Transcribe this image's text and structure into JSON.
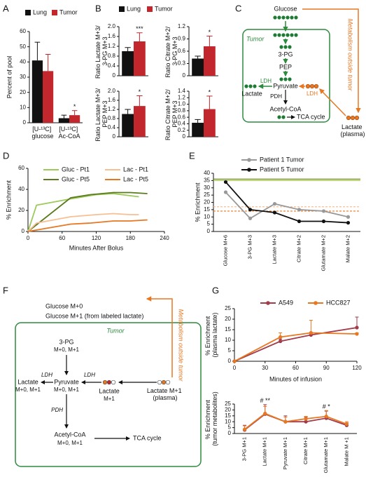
{
  "panel_labels": [
    "A",
    "B",
    "C",
    "D",
    "E",
    "F",
    "G"
  ],
  "chart_data": [
    {
      "type": "bar",
      "ylabel": "Percent of pool",
      "categories": [
        "[U-¹³C] glucose",
        "[U-¹³C] Ac-CoA"
      ],
      "series": [
        {
          "name": "Lung",
          "color": "#111111",
          "values": [
            41,
            3
          ],
          "errors": [
            12,
            2
          ]
        },
        {
          "name": "Tumor",
          "color": "#c1272d",
          "values": [
            34,
            5
          ],
          "errors": [
            11,
            3
          ],
          "annotations": [
            null,
            "*"
          ]
        }
      ],
      "ylim": [
        0,
        60
      ],
      "yticks": [
        0,
        10,
        20,
        30,
        40,
        50,
        60
      ]
    },
    {
      "type": "bar",
      "ylabel": "Ratio Lactate M+3/ 3-PG M+3",
      "series": [
        {
          "name": "Lung",
          "color": "#111111",
          "values": [
            1.0
          ],
          "errors": [
            0.15
          ]
        },
        {
          "name": "Tumor",
          "color": "#c1272d",
          "values": [
            1.4
          ],
          "errors": [
            0.35
          ],
          "annotations": [
            "***"
          ]
        }
      ],
      "ylim": [
        0,
        2
      ],
      "yticks": [
        0,
        0.4,
        0.8,
        1.2,
        1.6,
        {
          "value": 2,
          "label": "2.0"
        }
      ]
    },
    {
      "type": "bar",
      "ylabel": "Ratio Citrate M+2/ 3-PG M+3",
      "series": [
        {
          "color": "#111111",
          "values": [
            0.42
          ],
          "errors": [
            0.06
          ]
        },
        {
          "color": "#c1272d",
          "values": [
            0.72
          ],
          "errors": [
            0.25
          ],
          "annotations": [
            "*"
          ]
        }
      ],
      "ylim": [
        0,
        1.2
      ],
      "yticks": [
        0,
        0.3,
        0.6,
        0.9,
        1.2
      ]
    },
    {
      "type": "bar",
      "ylabel": "Ratio Lactate M+3/ PEP M+3",
      "series": [
        {
          "color": "#111111",
          "values": [
            1.0
          ],
          "errors": [
            0.2
          ]
        },
        {
          "color": "#c1272d",
          "values": [
            1.35
          ],
          "errors": [
            0.45
          ],
          "annotations": [
            "*"
          ]
        }
      ],
      "ylim": [
        0,
        2
      ],
      "yticks": [
        0,
        0.4,
        0.8,
        1.2,
        1.6,
        {
          "value": 2,
          "label": "2.0"
        }
      ]
    },
    {
      "type": "bar",
      "ylabel": "Ratio Citrate M+2/ PEP M+3",
      "series": [
        {
          "color": "#111111",
          "values": [
            0.43
          ],
          "errors": [
            0.1
          ]
        },
        {
          "color": "#c1272d",
          "values": [
            0.85
          ],
          "errors": [
            0.4
          ],
          "annotations": [
            "*"
          ]
        }
      ],
      "ylim": [
        0,
        1.4
      ],
      "yticks": [
        0,
        0.2,
        0.4,
        0.6,
        0.8,
        {
          "value": 1,
          "label": "1.0"
        },
        1.2,
        1.4
      ]
    },
    {
      "type": "line",
      "xlabel": "Minutes After Bolus",
      "ylabel": "% Enrichment",
      "xlim": [
        0,
        240
      ],
      "xticks": [
        0,
        60,
        120,
        180,
        240
      ],
      "ylim": [
        0,
        60
      ],
      "yticks": [
        0,
        20,
        40,
        60
      ],
      "series": [
        {
          "name": "Gluc - Pt1",
          "color": "#9bc95a",
          "x": [
            0,
            15,
            75,
            120,
            150,
            180,
            195
          ],
          "values": [
            0,
            25,
            31,
            35,
            36,
            34,
            33
          ]
        },
        {
          "name": "Gluc - Pt5",
          "color": "#5b7a1e",
          "x": [
            0,
            75,
            110,
            150,
            180,
            210
          ],
          "values": [
            0,
            32,
            35,
            37,
            37,
            36
          ]
        },
        {
          "name": "Lac - Pt1",
          "color": "#f7bf94",
          "x": [
            0,
            15,
            75,
            120,
            150,
            180,
            195
          ],
          "values": [
            0,
            8,
            14,
            16,
            17,
            16,
            16
          ]
        },
        {
          "name": "Lac - Pt5",
          "color": "#e87722",
          "x": [
            0,
            75,
            110,
            150,
            180,
            210
          ],
          "values": [
            0,
            7,
            8,
            10,
            10,
            11
          ]
        }
      ]
    },
    {
      "type": "line",
      "ylabel": "% Enrichment",
      "markers": true,
      "categories": [
        "Glucose M+6",
        "3-PG M+3",
        "Lactate M+3",
        "Citrate M+2",
        "Glutamate M+2",
        "Malate M+2"
      ],
      "ylim": [
        0,
        40
      ],
      "yticks": [
        0,
        5,
        10,
        15,
        20,
        25,
        30,
        35,
        40
      ],
      "series": [
        {
          "name": "Patient 1 Tumor",
          "color": "#999999",
          "values": [
            27,
            9,
            19,
            15,
            14,
            10
          ]
        },
        {
          "name": "Patient 5 Tumor",
          "color": "#111111",
          "values": [
            34,
            15,
            13,
            7,
            7,
            6
          ]
        }
      ],
      "reference_lines": [
        {
          "value": 36,
          "color": "#5b7a1e"
        },
        {
          "value": 35,
          "color": "#a6ce39"
        },
        {
          "value": 17,
          "color": "#f7bf94",
          "dashed": true
        },
        {
          "value": 14,
          "color": "#e87722",
          "dashed": true
        }
      ]
    },
    {
      "type": "line",
      "xlabel": "Minutes of infusion",
      "ylabel": "% Enrichment (plasma lactate)",
      "markers": true,
      "xlim": [
        0,
        120
      ],
      "xticks": [
        0,
        30,
        60,
        90,
        120
      ],
      "ylim": [
        0,
        25
      ],
      "yticks": [
        0,
        5,
        10,
        15,
        20,
        25
      ],
      "series": [
        {
          "name": "A549",
          "color": "#a23b4a",
          "x": [
            0,
            45,
            75,
            120
          ],
          "values": [
            0,
            9.5,
            12.5,
            16
          ],
          "errors": [
            0,
            1,
            1,
            5
          ]
        },
        {
          "name": "HCC827",
          "color": "#e87722",
          "x": [
            0,
            45,
            75,
            120
          ],
          "values": [
            0,
            11.5,
            13.5,
            13
          ],
          "errors": [
            0,
            2,
            6,
            0.5
          ]
        }
      ]
    },
    {
      "type": "line",
      "ylabel": "% Enrichment (tumor metabolites)",
      "markers": true,
      "categories": [
        "3-PG M+1",
        "Lactate M+1",
        "Pyruvate M+1",
        "Citrate M+1",
        "Glutamate M+1",
        "Malate M +1"
      ],
      "ylim": [
        0,
        25
      ],
      "yticks": [
        0,
        5,
        10,
        15,
        20,
        25
      ],
      "series": [
        {
          "color": "#a23b4a",
          "values": [
            3,
            16.5,
            10,
            10,
            13,
            7
          ],
          "errors": [
            4,
            8,
            5,
            4,
            6,
            2
          ]
        },
        {
          "color": "#e87722",
          "values": [
            3.5,
            17,
            10,
            12.5,
            14.5,
            8
          ],
          "errors": [
            3,
            6,
            4,
            2,
            5,
            2
          ]
        }
      ],
      "annotations": [
        null,
        "# **",
        null,
        null,
        "# *",
        null
      ]
    }
  ],
  "diagram_c": {
    "glucose": "Glucose",
    "tumor": "Tumor",
    "pg": "3-PG",
    "pep": "PEP",
    "pyruvate": "Pyruvate",
    "lactate": "Lactate",
    "ldh_in": "LDH",
    "ldh_out": "LDH",
    "pdh": "PDH",
    "acetyl_coa": "Acetyl-CoA",
    "tca": "TCA cycle",
    "outside": "Metabolism outside tumor",
    "plasma_lactate": "Lactate (plasma)"
  },
  "diagram_f": {
    "glucose_m0": "Glucose M+0",
    "glucose_m1": "Glucose M+1 (from labeled lactate)",
    "tumor": "Tumor",
    "pg": "3-PG",
    "pg_iso": "M+0, M+1",
    "pyruvate": "Pyruvate",
    "pyruvate_iso": "M+0, M+1",
    "lactate": "Lactate",
    "lactate_iso": "M+0, M+1",
    "ldh_left": "LDH",
    "ldh_right": "LDH",
    "lactate_tumor": "Lactate",
    "lactate_tumor_iso": "M+1",
    "plasma": "Lactate M+1 (plasma)",
    "pdh": "PDH",
    "acetyl_coa": "Acetyl-CoA",
    "acetyl_iso": "M+0, M+1",
    "tca": "TCA cycle",
    "outside": "Metabolism outside tumor"
  }
}
